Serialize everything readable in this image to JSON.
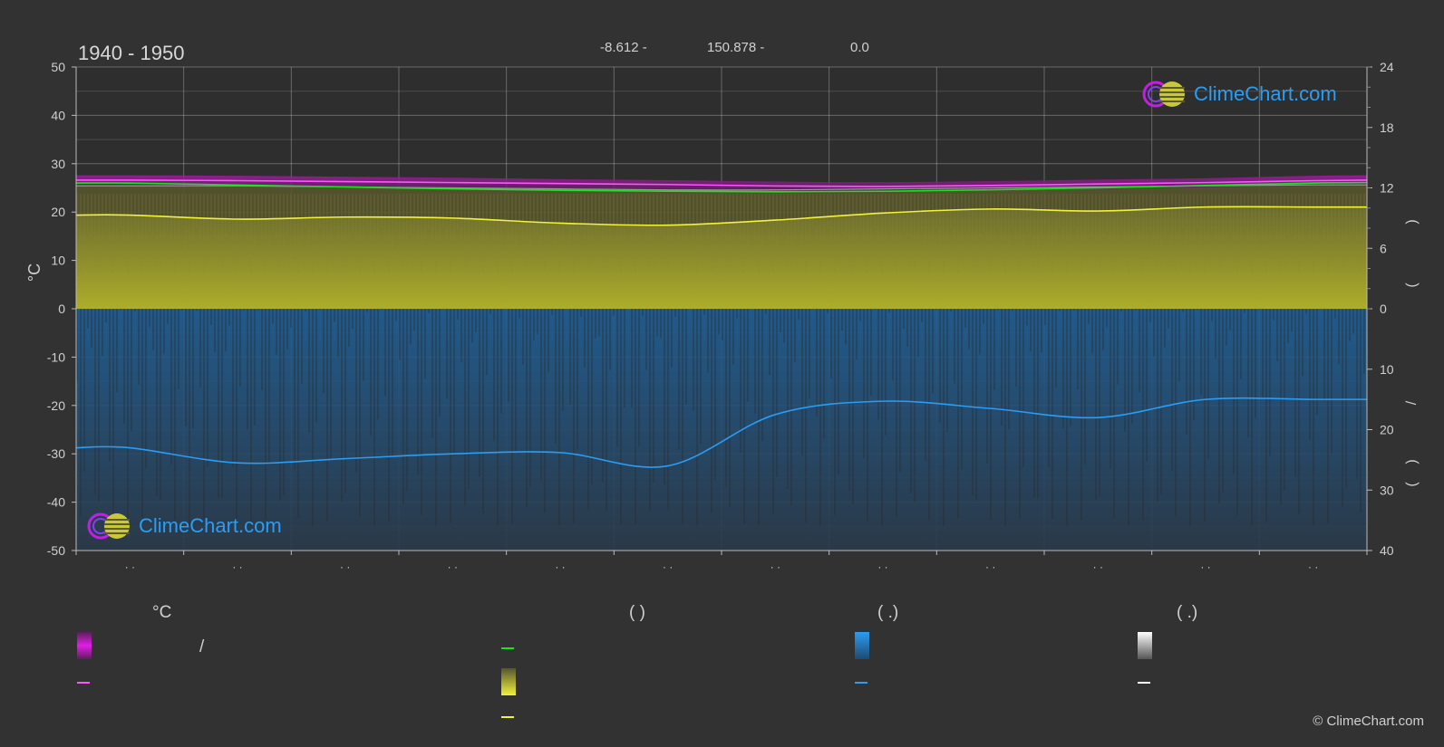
{
  "header": {
    "title": "1940 - 1950",
    "latitude": "-8.612 -",
    "longitude": "150.878 -",
    "elevation": "0.0"
  },
  "logo": {
    "text": "ClimeChart.com"
  },
  "copyright": "© ClimeChart.com",
  "colors": {
    "background": "#323232",
    "temp_band": "#e21ee6",
    "temp_line": "#ff55ff",
    "dewpoint_line": "#19e619",
    "sunshine_fill": "#bdbd2a",
    "sunshine_line": "#f2f23a",
    "precip_fill": "#1f5f96",
    "precip_line": "#2a9df4",
    "snow_line": "#ffffff"
  },
  "legend": {
    "col1_head": "°C",
    "col1_slash": "/",
    "col2_head": "(          )",
    "col3_head": "(   .)",
    "col4_head": "(   .)"
  },
  "chart_data": {
    "type": "area",
    "title": "1940 - 1950",
    "ylabel_left": "°C",
    "ylim_left": [
      -50,
      50
    ],
    "yticks_left": [
      "50",
      "40",
      "30",
      "20",
      "10",
      "0",
      "-10",
      "-20",
      "-30",
      "-40",
      "-50"
    ],
    "ylim_right_top": [
      0,
      24
    ],
    "yticks_right_top": [
      "24",
      "18",
      "12",
      "6",
      "0"
    ],
    "ylim_right_bottom": [
      0,
      40
    ],
    "yticks_right_bottom": [
      "10",
      "20",
      "30",
      "40"
    ],
    "right_axis_marks": [
      ")",
      "(",
      "/",
      ")",
      "("
    ],
    "x_tick_labels": [
      "· ·",
      "· ·",
      "· ·",
      "· ·",
      "· ·",
      "· ·",
      "· ·",
      "· ·",
      "· ·",
      "· ·",
      "· ·",
      "· ·"
    ],
    "x": [
      0,
      0.5,
      1.5,
      2.5,
      3.5,
      4.5,
      5.5,
      6.5,
      7.5,
      8.5,
      9.5,
      10.5,
      11.5,
      12
    ],
    "series": [
      {
        "key": "temp_max",
        "values": [
          27.6,
          27.6,
          27.5,
          27.3,
          27.1,
          26.8,
          26.6,
          26.3,
          26.2,
          26.4,
          26.7,
          27.0,
          27.5,
          27.6
        ]
      },
      {
        "key": "temp_mean",
        "values": [
          26.6,
          26.6,
          26.5,
          26.3,
          26.1,
          25.9,
          25.7,
          25.4,
          25.3,
          25.5,
          25.8,
          26.1,
          26.5,
          26.6
        ]
      },
      {
        "key": "temp_min",
        "values": [
          25.6,
          25.6,
          25.5,
          25.3,
          25.1,
          24.9,
          24.7,
          24.4,
          24.3,
          24.5,
          24.8,
          25.1,
          25.5,
          25.6
        ]
      },
      {
        "key": "dewpoint",
        "values": [
          26.0,
          26.0,
          25.6,
          25.2,
          24.8,
          24.5,
          24.3,
          24.2,
          24.3,
          24.6,
          25.0,
          25.5,
          26.0,
          26.1
        ]
      },
      {
        "key": "daylight_hours",
        "values": [
          12.2,
          12.2,
          12.2,
          12.1,
          12.0,
          11.9,
          11.8,
          11.8,
          11.9,
          12.0,
          12.1,
          12.2,
          12.3,
          12.3
        ]
      },
      {
        "key": "sunshine_hours",
        "values": [
          9.3,
          9.3,
          8.9,
          9.1,
          9.0,
          8.5,
          8.3,
          8.8,
          9.5,
          9.9,
          9.7,
          10.1,
          10.1,
          10.1
        ]
      },
      {
        "key": "precipitation_mm",
        "values": [
          23.0,
          23.0,
          25.5,
          24.8,
          24.0,
          23.8,
          26.0,
          17.5,
          15.3,
          16.5,
          18.0,
          15.0,
          15.0,
          15.0
        ]
      }
    ]
  }
}
